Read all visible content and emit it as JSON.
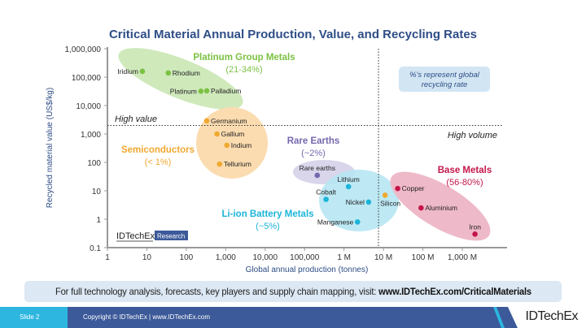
{
  "chart_data": {
    "type": "scatter",
    "title": "Critical Material Annual Production, Value, and Recycling Rates",
    "xlabel": "Global annual production (tonnes)",
    "ylabel": "Recycled material value (US$/kg)",
    "x_scale": "log",
    "y_scale": "log",
    "xlim": [
      1,
      1000000000
    ],
    "ylim": [
      0.1,
      1000000
    ],
    "x_ticks": [
      {
        "v": 1,
        "label": "1"
      },
      {
        "v": 10,
        "label": "10"
      },
      {
        "v": 100,
        "label": "100"
      },
      {
        "v": 1000,
        "label": "1,000"
      },
      {
        "v": 10000,
        "label": "10,000"
      },
      {
        "v": 100000,
        "label": "100,000"
      },
      {
        "v": 1000000,
        "label": "1 M"
      },
      {
        "v": 10000000,
        "label": "10 M"
      },
      {
        "v": 100000000,
        "label": "100 M"
      },
      {
        "v": 1000000000,
        "label": "1,000 M"
      }
    ],
    "y_ticks": [
      {
        "v": 1000000,
        "label": "1,000,000"
      },
      {
        "v": 100000,
        "label": "100,000"
      },
      {
        "v": 10000,
        "label": "10,000"
      },
      {
        "v": 1000,
        "label": "1,000"
      },
      {
        "v": 100,
        "label": "100"
      },
      {
        "v": 10,
        "label": "10"
      },
      {
        "v": 1,
        "label": "1"
      },
      {
        "v": 0.1,
        "label": "0.1"
      }
    ],
    "grid": false,
    "thresholds": {
      "high_value_y": 2000,
      "high_volume_x": 7500000
    },
    "groups": [
      {
        "name": "Platinum Group Metals",
        "rate": "(21-34%)",
        "color": "#7cc142",
        "fill": "#cfe9bb"
      },
      {
        "name": "Semiconductors",
        "rate": "(< 1%)",
        "color": "#f0a830",
        "fill": "#fbdcb0"
      },
      {
        "name": "Rare Earths",
        "rate": "(~2%)",
        "color": "#7567ad",
        "fill": "#d7d3ea"
      },
      {
        "name": "Li-ion Battery Metals",
        "rate": "(~5%)",
        "color": "#1cb4d8",
        "fill": "#b6e6f3"
      },
      {
        "name": "Base Metals",
        "rate": "(56-80%)",
        "color": "#c4164a",
        "fill": "#eeb9c8"
      }
    ],
    "points": [
      {
        "name": "Iridium",
        "x": 7.7,
        "y": 160000,
        "group": 0
      },
      {
        "name": "Rhodium",
        "x": 35,
        "y": 140000,
        "group": 0
      },
      {
        "name": "Platinum",
        "x": 235,
        "y": 32000,
        "group": 0
      },
      {
        "name": "Palladium",
        "x": 330,
        "y": 33000,
        "group": 0
      },
      {
        "name": "Germanium",
        "x": 330,
        "y": 2900,
        "group": 1
      },
      {
        "name": "Gallium",
        "x": 600,
        "y": 1000,
        "group": 1
      },
      {
        "name": "Indium",
        "x": 1070,
        "y": 400,
        "group": 1
      },
      {
        "name": "Tellurium",
        "x": 700,
        "y": 87,
        "group": 1
      },
      {
        "name": "Rare earths",
        "x": 210000,
        "y": 35,
        "group": 2
      },
      {
        "name": "Lithium",
        "x": 1300000,
        "y": 14,
        "group": 3
      },
      {
        "name": "Cobalt",
        "x": 350000,
        "y": 5,
        "group": 3
      },
      {
        "name": "Nickel",
        "x": 4200000,
        "y": 4,
        "group": 3
      },
      {
        "name": "Manganese",
        "x": 2200000,
        "y": 0.8,
        "group": 3
      },
      {
        "name": "Silicon",
        "x": 11000000,
        "y": 7,
        "group": 1
      },
      {
        "name": "Copper",
        "x": 23000000,
        "y": 12,
        "group": 4
      },
      {
        "name": "Aluminium",
        "x": 90000000,
        "y": 2.5,
        "group": 4
      },
      {
        "name": "Iron",
        "x": 2100000000,
        "y": 0.3,
        "group": 4
      }
    ],
    "annotations": {
      "high_value": "High value",
      "high_volume": "High volume",
      "note": [
        "%'s represent global",
        "recycling rate"
      ]
    }
  },
  "watermark": {
    "brand": "IDTechEx",
    "tag": "Research"
  },
  "banner": {
    "text": "For full technology analysis, forecasts, key players and supply chain mapping, visit: ",
    "link": "www.IDTechEx.com/CriticalMaterials"
  },
  "footer": {
    "slide": "Slide 2",
    "copyright": "Copyright © IDTechEx  |  www.IDTechEx.com",
    "logo": "IDTechEx"
  },
  "colors": {
    "title": "#2e4d86",
    "footer": "#3c5a99",
    "accent": "#2cb6e0"
  }
}
